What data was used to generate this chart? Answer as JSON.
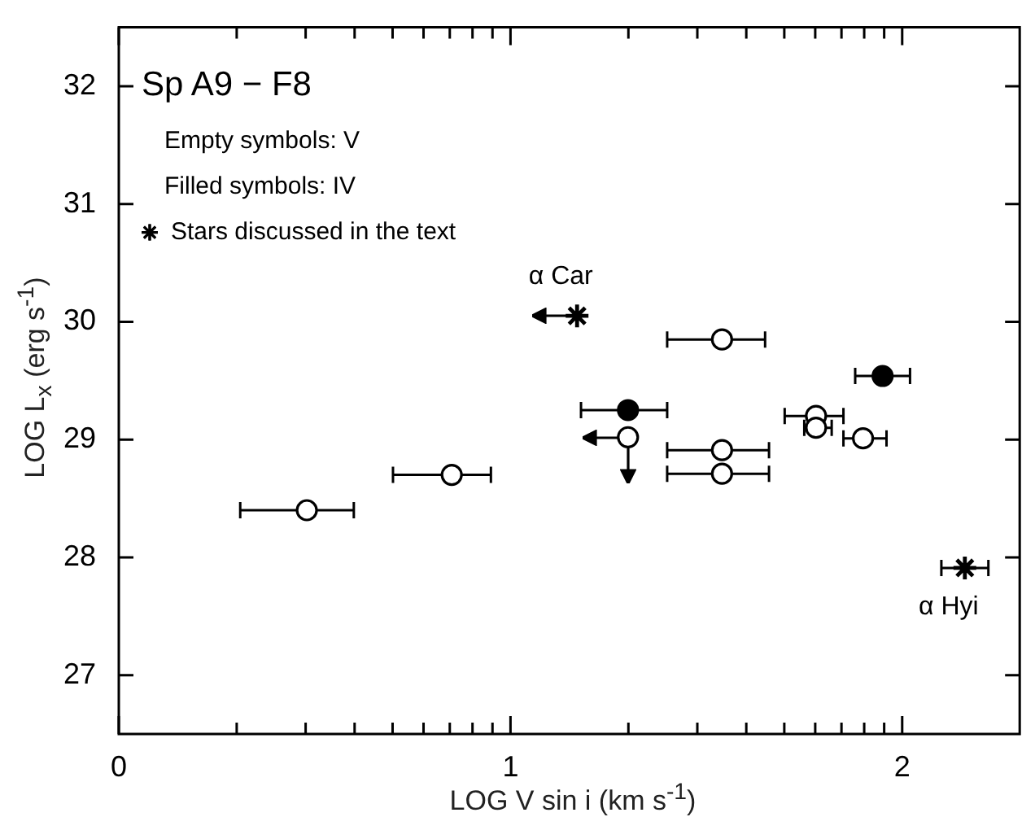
{
  "chart_data": {
    "type": "scatter",
    "xlabel": "LOG V sin i (km s$^{-1}$)",
    "ylabel": "LOG L$_{x}$ (erg s$^{-1}$)",
    "xlim": [
      0,
      2.3
    ],
    "ylim": [
      26.5,
      32.5
    ],
    "xticks": [
      0,
      {
        "value": 0.301,
        "label": null
      },
      {
        "value": 0.477,
        "label": null
      },
      {
        "value": 0.602,
        "label": null
      },
      {
        "value": 0.699,
        "label": null
      },
      {
        "value": 0.778,
        "label": null
      },
      {
        "value": 0.845,
        "label": null
      },
      {
        "value": 0.903,
        "label": null
      },
      {
        "value": 0.954,
        "label": null
      },
      1,
      {
        "value": 1.301,
        "label": null
      },
      {
        "value": 1.477,
        "label": null
      },
      {
        "value": 1.602,
        "label": null
      },
      {
        "value": 1.699,
        "label": null
      },
      {
        "value": 1.778,
        "label": null
      },
      {
        "value": 1.845,
        "label": null
      },
      {
        "value": 1.903,
        "label": null
      },
      {
        "value": 1.954,
        "label": null
      },
      2
    ],
    "yticks": [
      27,
      28,
      29,
      30,
      31,
      32
    ],
    "grid": false,
    "legend": "top left",
    "series": [
      {
        "color": "#ffffff",
        "marker": "circle",
        "x": [
          1.3,
          0.48,
          0.85,
          1.54,
          1.54,
          1.54,
          1.78,
          1.78,
          1.9
        ],
        "values": [
          29.02,
          28.4,
          28.7,
          29.85,
          28.91,
          28.71,
          29.2,
          29.1,
          29.01
        ],
        "xerrors": [
          null,
          [
            0.31,
            0.6
          ],
          [
            0.7,
            0.95
          ],
          [
            1.4,
            1.65
          ],
          [
            1.4,
            1.66
          ],
          [
            1.4,
            1.66
          ],
          [
            1.7,
            1.85
          ],
          [
            1.75,
            1.82
          ],
          [
            1.85,
            1.96
          ]
        ]
      },
      {
        "color": "#000000",
        "marker": "circle",
        "x": [
          1.3,
          1.95
        ],
        "values": [
          29.25,
          29.54
        ],
        "xerrors": [
          [
            1.18,
            1.4
          ],
          [
            1.88,
            2.02
          ]
        ]
      },
      {
        "name": "Stars discussed in the text",
        "color": "#000000",
        "marker": "cross",
        "x": [
          1.17,
          2.16
        ],
        "values": [
          30.05,
          27.91
        ],
        "xerrors": [
          null,
          [
            2.1,
            2.22
          ]
        ]
      }
    ],
    "annotations": [
      "Sp A9 − F8",
      "Empty symbols: V",
      "Filled symbols: IV",
      {
        "text": "α Car",
        "x": 1.17,
        "y": 30.05
      },
      {
        "text": "α Hyi",
        "x": 2.16,
        "y": 27.91
      }
    ]
  }
}
